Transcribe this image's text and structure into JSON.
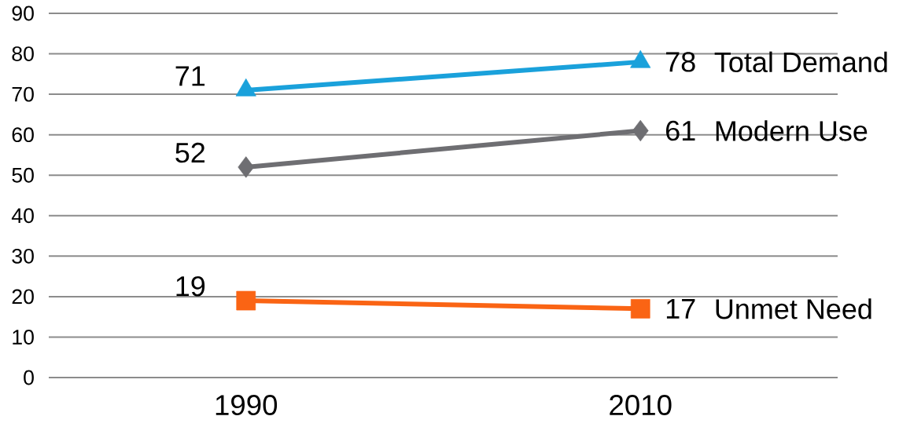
{
  "chart_data": {
    "type": "line",
    "categories": [
      "1990",
      "2010"
    ],
    "series": [
      {
        "name": "Total Demand",
        "color": "#1aa1db",
        "marker": "triangle",
        "values": [
          71,
          78
        ]
      },
      {
        "name": "Modern Use",
        "color": "#6e6e72",
        "marker": "diamond",
        "values": [
          52,
          61
        ]
      },
      {
        "name": "Unmet Need",
        "color": "#fa6414",
        "marker": "square",
        "values": [
          19,
          17
        ]
      }
    ],
    "ylim": [
      0,
      90
    ],
    "yticks": [
      0,
      10,
      20,
      30,
      40,
      50,
      60,
      70,
      80,
      90
    ],
    "grid": "y",
    "data_labels": true,
    "line_style": "solid",
    "legend": false
  }
}
